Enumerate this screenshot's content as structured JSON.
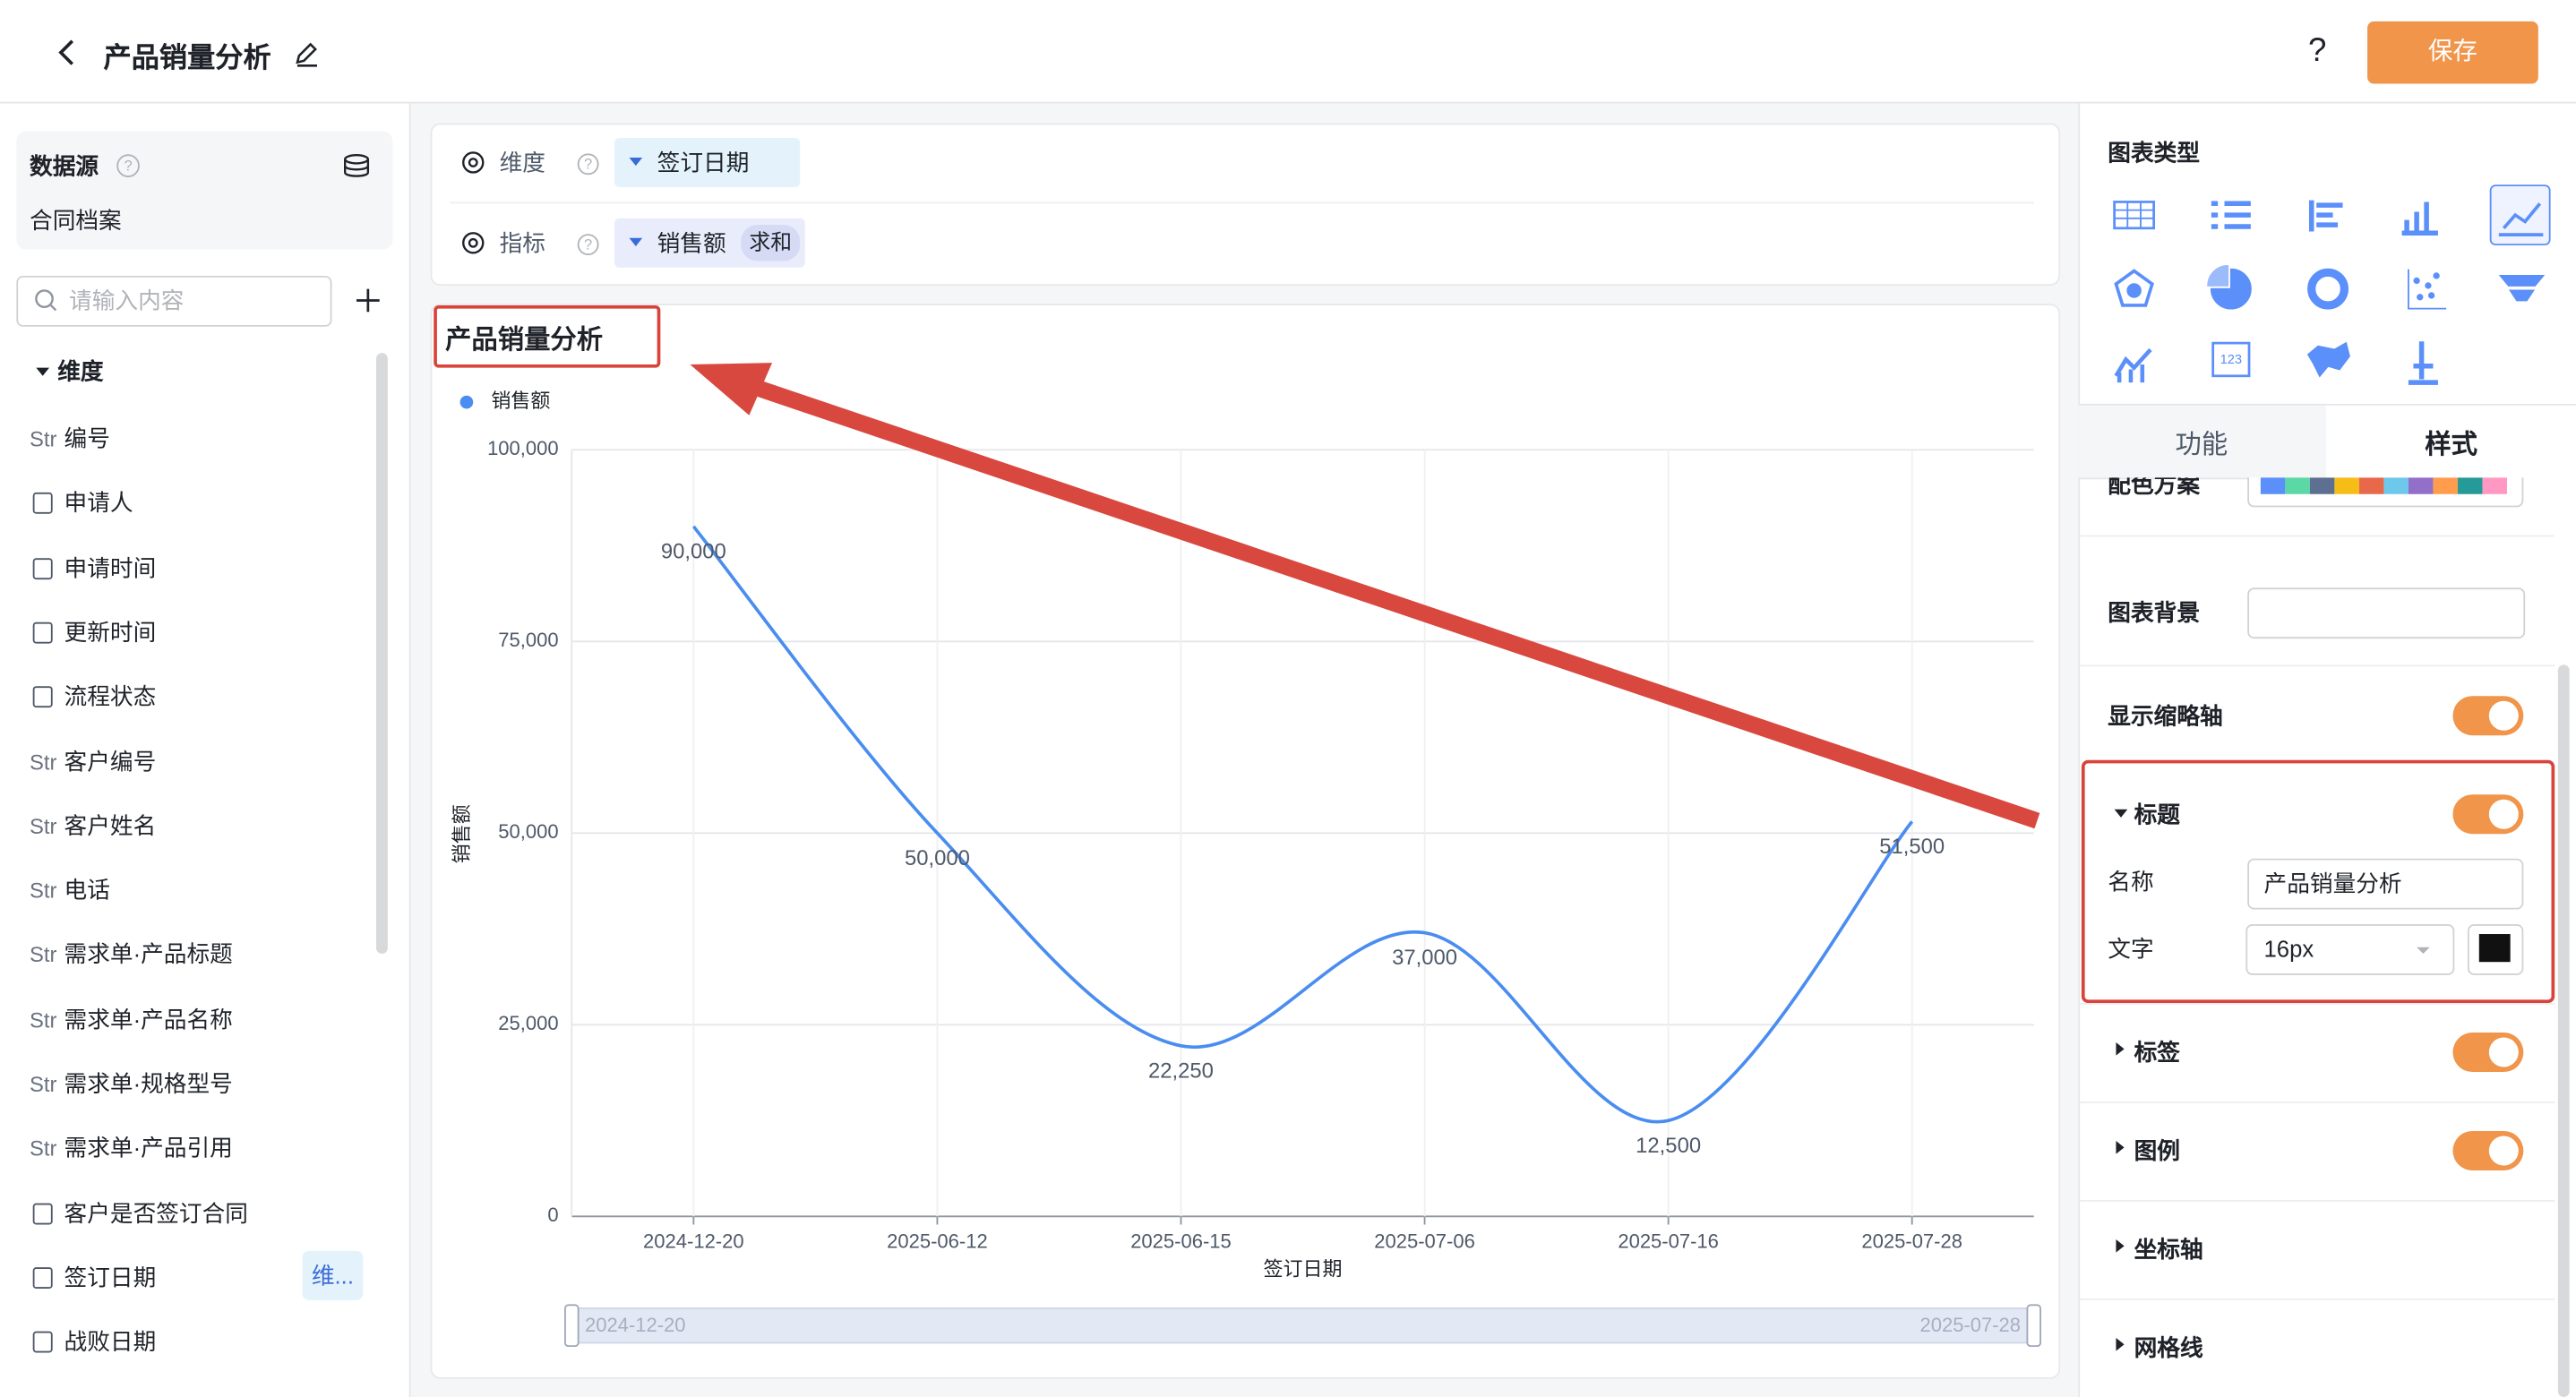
{
  "header": {
    "title": "产品销量分析",
    "help": "?",
    "save": "保存"
  },
  "sidebar": {
    "title": "数据源",
    "source": "合同档案",
    "search_placeholder": "请输入内容",
    "section": "维度",
    "fields": [
      {
        "type": "Str",
        "name": "编号"
      },
      {
        "name": "申请人"
      },
      {
        "name": "申请时间"
      },
      {
        "name": "更新时间"
      },
      {
        "name": "流程状态"
      },
      {
        "type": "Str",
        "name": "客户编号"
      },
      {
        "type": "Str",
        "name": "客户姓名"
      },
      {
        "type": "Str",
        "name": "电话"
      },
      {
        "type": "Str",
        "name": "需求单·产品标题"
      },
      {
        "type": "Str",
        "name": "需求单·产品名称"
      },
      {
        "type": "Str",
        "name": "需求单·规格型号"
      },
      {
        "type": "Str",
        "name": "需求单·产品引用"
      },
      {
        "name": "客户是否签订合同"
      },
      {
        "name": "签订日期",
        "tag": "维..."
      },
      {
        "name": "战败日期"
      }
    ]
  },
  "config": {
    "dimension": {
      "label": "维度",
      "value": "签订日期"
    },
    "metric": {
      "label": "指标",
      "value": "销售额",
      "agg": "求和"
    }
  },
  "chart_data": {
    "type": "line",
    "title": "产品销量分析",
    "x_label": "签订日期",
    "y_label": "销售额",
    "categories": [
      "2024-12-20",
      "2025-06-12",
      "2025-06-15",
      "2025-07-06",
      "2025-07-16",
      "2025-07-28"
    ],
    "series": [
      {
        "name": "销售额",
        "color": "#4a8df0",
        "values": [
          90000,
          50000,
          22250,
          37000,
          12500,
          51500
        ],
        "value_labels": [
          "90,000",
          "50,000",
          "22,250",
          "37,000",
          "12,500",
          "51,500"
        ]
      }
    ],
    "ylim": [
      0,
      100000
    ],
    "yticks": [
      0,
      {
        "value": 25000,
        "label": "25,000"
      },
      {
        "value": 50000,
        "label": "50,000"
      },
      {
        "value": 75000,
        "label": "75,000"
      },
      {
        "value": 100000,
        "label": "100,000"
      }
    ],
    "grid": true,
    "smooth": true,
    "legend": "top-left",
    "zoom_start": "2024-12-20",
    "zoom_end": "2025-07-28"
  },
  "panel": {
    "chart_type_title": "图表类型",
    "tabs": [
      "功能",
      "样式"
    ],
    "color_scheme": "配色方案",
    "background": "图表背景",
    "show_zoom": {
      "label": "显示缩略轴",
      "on": true
    },
    "title_section": {
      "label": "标题",
      "on": true,
      "name_label": "名称",
      "name_value": "产品销量分析",
      "font_label": "文字",
      "font_size": "16px"
    },
    "sections": [
      {
        "label": "标签",
        "on": true
      },
      {
        "label": "图例",
        "on": true
      },
      {
        "label": "坐标轴"
      },
      {
        "label": "网格线"
      }
    ]
  }
}
